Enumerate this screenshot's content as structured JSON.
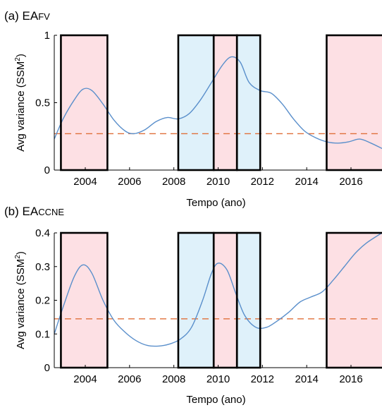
{
  "chart_data": [
    {
      "type": "line",
      "panel_label": "(a) EA",
      "panel_label_sc": "FV",
      "xlabel": "Tempo (ano)",
      "ylabel_main": "Avg variance (SSM",
      "ylabel_sup": "2",
      "ylabel_close": ")",
      "xlim": [
        2002.6,
        2017.4
      ],
      "ylim": [
        0,
        1
      ],
      "xticks": [
        2004,
        2006,
        2008,
        2010,
        2012,
        2014,
        2016
      ],
      "yticks": [
        0,
        0.5,
        1
      ],
      "ytick_labels": [
        "0",
        "0.5",
        "1"
      ],
      "threshold": 0.27,
      "shaded_periods": [
        {
          "start": 2002.9,
          "end": 2005.0,
          "color": "#fde0e4"
        },
        {
          "start": 2008.2,
          "end": 2009.8,
          "color": "#dff1fa"
        },
        {
          "start": 2009.8,
          "end": 2010.85,
          "color": "#fde0e4"
        },
        {
          "start": 2010.85,
          "end": 2011.9,
          "color": "#dff1fa"
        },
        {
          "start": 2014.9,
          "end": 2017.5,
          "color": "#fde0e4"
        }
      ],
      "series": [
        {
          "x": [
            2002.6,
            2003.0,
            2003.5,
            2003.9,
            2004.3,
            2004.8,
            2005.3,
            2005.8,
            2006.2,
            2006.7,
            2007.2,
            2007.7,
            2008.2,
            2008.7,
            2009.2,
            2009.7,
            2010.2,
            2010.6,
            2011.0,
            2011.4,
            2011.9,
            2012.4,
            2012.9,
            2013.4,
            2013.9,
            2014.4,
            2014.9,
            2015.4,
            2015.9,
            2016.4,
            2016.9,
            2017.4
          ],
          "y": [
            0.23,
            0.38,
            0.52,
            0.6,
            0.59,
            0.49,
            0.37,
            0.29,
            0.27,
            0.3,
            0.36,
            0.39,
            0.38,
            0.42,
            0.52,
            0.65,
            0.78,
            0.84,
            0.8,
            0.65,
            0.59,
            0.57,
            0.49,
            0.38,
            0.29,
            0.24,
            0.21,
            0.2,
            0.21,
            0.23,
            0.2,
            0.16
          ]
        }
      ]
    },
    {
      "type": "line",
      "panel_label": "(b) EA",
      "panel_label_sc": "CCNE",
      "xlabel": "Tempo (ano)",
      "ylabel_main": "Avg variance (SSM",
      "ylabel_sup": "2",
      "ylabel_close": ")",
      "xlim": [
        2002.6,
        2017.4
      ],
      "ylim": [
        0,
        0.4
      ],
      "xticks": [
        2004,
        2006,
        2008,
        2010,
        2012,
        2014,
        2016
      ],
      "yticks": [
        0,
        0.1,
        0.2,
        0.3,
        0.4
      ],
      "ytick_labels": [
        "0",
        "0.1",
        "0.2",
        "0.3",
        "0.4"
      ],
      "threshold": 0.145,
      "shaded_periods": [
        {
          "start": 2002.9,
          "end": 2005.0,
          "color": "#fde0e4"
        },
        {
          "start": 2008.2,
          "end": 2009.8,
          "color": "#dff1fa"
        },
        {
          "start": 2009.8,
          "end": 2010.85,
          "color": "#fde0e4"
        },
        {
          "start": 2010.85,
          "end": 2011.9,
          "color": "#dff1fa"
        },
        {
          "start": 2014.9,
          "end": 2017.5,
          "color": "#fde0e4"
        }
      ],
      "series": [
        {
          "x": [
            2002.6,
            2003.0,
            2003.5,
            2003.9,
            2004.3,
            2004.8,
            2005.3,
            2005.8,
            2006.3,
            2006.8,
            2007.3,
            2007.8,
            2008.3,
            2008.8,
            2009.3,
            2009.7,
            2010.0,
            2010.4,
            2010.8,
            2011.2,
            2011.7,
            2012.2,
            2012.7,
            2013.2,
            2013.7,
            2014.2,
            2014.7,
            2015.2,
            2015.7,
            2016.2,
            2016.7,
            2017.4
          ],
          "y": [
            0.1,
            0.18,
            0.27,
            0.305,
            0.28,
            0.2,
            0.14,
            0.105,
            0.08,
            0.066,
            0.064,
            0.07,
            0.085,
            0.12,
            0.2,
            0.28,
            0.31,
            0.29,
            0.22,
            0.155,
            0.12,
            0.12,
            0.14,
            0.165,
            0.195,
            0.21,
            0.225,
            0.26,
            0.3,
            0.34,
            0.37,
            0.4
          ]
        }
      ]
    }
  ],
  "style": {
    "line_color": "#5a8fcb",
    "threshold_color": "#e0703a",
    "pink": "#fde0e4",
    "blue": "#dff1fa",
    "box_color": "#000000"
  }
}
